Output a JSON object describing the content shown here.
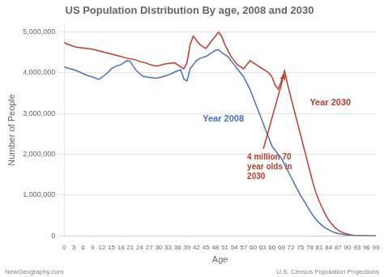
{
  "chart_data": {
    "type": "line",
    "title": "US Population Distribution By age, 2008 and 2030",
    "xlabel": "Age",
    "ylabel": "Number of People",
    "xlim": [
      0,
      99
    ],
    "xticks": [
      0,
      3,
      6,
      9,
      12,
      15,
      18,
      21,
      24,
      27,
      30,
      33,
      36,
      39,
      42,
      45,
      48,
      51,
      54,
      57,
      60,
      63,
      66,
      69,
      72,
      75,
      78,
      81,
      84,
      87,
      90,
      93,
      96,
      99
    ],
    "ylim": [
      0,
      5200000
    ],
    "yticks": [
      0,
      {
        "value": 1000000,
        "label": "1,000,000"
      },
      {
        "value": 2000000,
        "label": "2,000,000"
      },
      {
        "value": 3000000,
        "label": "3,000,000"
      },
      {
        "value": 4000000,
        "label": "4,000,000"
      },
      {
        "value": 5000000,
        "label": "5,000,000"
      }
    ],
    "grid": "y",
    "x": [
      0,
      1,
      2,
      3,
      4,
      5,
      6,
      7,
      8,
      9,
      10,
      11,
      12,
      13,
      14,
      15,
      16,
      17,
      18,
      19,
      20,
      21,
      22,
      23,
      24,
      25,
      26,
      27,
      28,
      29,
      30,
      31,
      32,
      33,
      34,
      35,
      36,
      37,
      38,
      39,
      40,
      41,
      42,
      43,
      44,
      45,
      46,
      47,
      48,
      49,
      50,
      51,
      52,
      53,
      54,
      55,
      56,
      57,
      58,
      59,
      60,
      61,
      62,
      63,
      64,
      65,
      66,
      67,
      68,
      69,
      70,
      71,
      72,
      73,
      74,
      75,
      76,
      77,
      78,
      79,
      80,
      81,
      82,
      83,
      84,
      85,
      86,
      87,
      88,
      89,
      90,
      91,
      92,
      93,
      94,
      95,
      96,
      97,
      98,
      99
    ],
    "series": [
      {
        "color": "#4472c4",
        "values": [
          4150000,
          4120000,
          4100000,
          4080000,
          4050000,
          4020000,
          3980000,
          3950000,
          3920000,
          3900000,
          3870000,
          3840000,
          3890000,
          3950000,
          4020000,
          4100000,
          4150000,
          4180000,
          4200000,
          4250000,
          4300000,
          4280000,
          4150000,
          4050000,
          3980000,
          3920000,
          3900000,
          3890000,
          3880000,
          3870000,
          3880000,
          3900000,
          3920000,
          3950000,
          3980000,
          4020000,
          4050000,
          4080000,
          3850000,
          3800000,
          4100000,
          4200000,
          4300000,
          4350000,
          4380000,
          4400000,
          4450000,
          4500000,
          4550000,
          4570000,
          4500000,
          4450000,
          4400000,
          4300000,
          4200000,
          4100000,
          4000000,
          3900000,
          3750000,
          3600000,
          3400000,
          3200000,
          3000000,
          2800000,
          2600000,
          2400000,
          2200000,
          2100000,
          2000000,
          1900000,
          1750000,
          1600000,
          1450000,
          1300000,
          1150000,
          1000000,
          880000,
          750000,
          620000,
          500000,
          400000,
          320000,
          250000,
          190000,
          150000,
          110000,
          80000,
          58000,
          42000,
          30000,
          20000,
          13000,
          8000,
          5000,
          3000,
          2000,
          1200,
          700,
          400,
          200
        ]
      },
      {
        "color": "#c0392b",
        "values": [
          4750000,
          4700000,
          4680000,
          4650000,
          4630000,
          4620000,
          4610000,
          4600000,
          4590000,
          4580000,
          4560000,
          4540000,
          4520000,
          4500000,
          4480000,
          4460000,
          4440000,
          4420000,
          4400000,
          4380000,
          4360000,
          4340000,
          4330000,
          4310000,
          4280000,
          4260000,
          4240000,
          4210000,
          4190000,
          4170000,
          4180000,
          4200000,
          4220000,
          4230000,
          4240000,
          4250000,
          4200000,
          4150000,
          4100000,
          4250000,
          4700000,
          4900000,
          4800000,
          4700000,
          4650000,
          4600000,
          4700000,
          4800000,
          4900000,
          5000000,
          4900000,
          4700000,
          4550000,
          4400000,
          4300000,
          4200000,
          4150000,
          4100000,
          4200000,
          4300000,
          4250000,
          4200000,
          4150000,
          4100000,
          4050000,
          4000000,
          3900000,
          3700000,
          3600000,
          3800000,
          4050000,
          3700000,
          3400000,
          3100000,
          2800000,
          2500000,
          2200000,
          1900000,
          1600000,
          1300000,
          1050000,
          850000,
          680000,
          520000,
          390000,
          290000,
          200000,
          140000,
          95000,
          65000,
          42000,
          26000,
          16000,
          9500,
          5500,
          3000,
          1700,
          900,
          450,
          200
        ]
      }
    ],
    "annotations": [
      {
        "text": "Year 2008",
        "x": 44,
        "y": 2800000,
        "color": "#4472c4"
      },
      {
        "text": "Year 2030",
        "x": 78,
        "y": 3200000,
        "color": "#c0392b"
      },
      {
        "text": "4 million 70\nyear olds in\n2030",
        "x": 70,
        "y": 4000000,
        "color": "#c0392b",
        "arrow": true
      }
    ],
    "footnotes": [
      "NewGeography.com",
      "U.S. Census Population Projections"
    ]
  }
}
